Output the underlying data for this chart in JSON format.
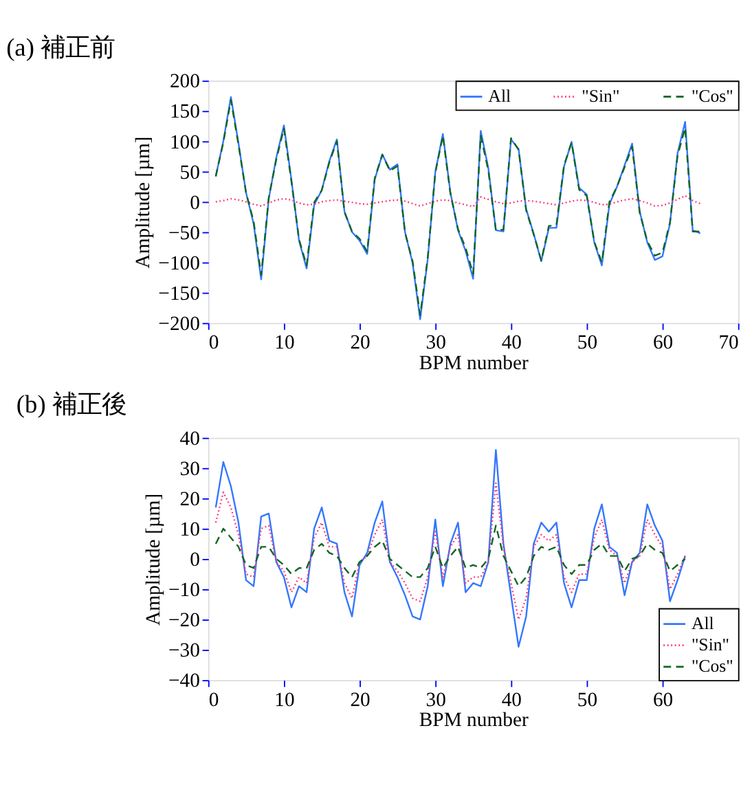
{
  "chart_data": [
    {
      "type": "line",
      "title": "(a)  補正前",
      "xlabel": "BPM number",
      "ylabel": "Amplitude [µm]",
      "xlim": [
        0,
        70
      ],
      "xticks": [
        0,
        10,
        20,
        30,
        40,
        50,
        60,
        70
      ],
      "ylim": [
        -200,
        200
      ],
      "yticks": [
        -200,
        -150,
        -100,
        -50,
        0,
        50,
        100,
        150,
        200
      ],
      "grid": false,
      "legend": "top",
      "marker": "none",
      "x": [
        1,
        2,
        3,
        4,
        5,
        6,
        7,
        8,
        9,
        10,
        11,
        12,
        13,
        14,
        15,
        16,
        17,
        18,
        19,
        20,
        21,
        22,
        23,
        24,
        25,
        26,
        27,
        28,
        29,
        30,
        31,
        32,
        33,
        34,
        35,
        36,
        37,
        38,
        39,
        40,
        41,
        42,
        43,
        44,
        45,
        46,
        47,
        48,
        49,
        50,
        51,
        52,
        53,
        54,
        55,
        56,
        57,
        58,
        59,
        60,
        61,
        62,
        63,
        64,
        65
      ],
      "series": [
        {
          "name": "All",
          "color": "#3377ff",
          "line_style": "solid",
          "values": [
            42,
            100,
            173,
            97,
            15,
            -36,
            -128,
            5,
            73,
            126,
            36,
            -64,
            -110,
            -5,
            19,
            67,
            103,
            -16,
            -50,
            -64,
            -86,
            37,
            78,
            53,
            62,
            -50,
            -101,
            -194,
            -95,
            49,
            112,
            15,
            -47,
            -81,
            -127,
            117,
            56,
            -47,
            -49,
            103,
            87,
            -12,
            -53,
            -98,
            -43,
            -43,
            58,
            99,
            23,
            12,
            -67,
            -105,
            -4,
            25,
            60,
            96,
            -16,
            -67,
            -96,
            -90,
            -36,
            80,
            132,
            -47,
            -52
          ]
        },
        {
          "name": "\"Sin\"",
          "color": "#ff3377",
          "line_style": "dotted",
          "values": [
            0,
            2,
            5,
            3,
            0,
            -4,
            -7,
            -2,
            3,
            5,
            3,
            -2,
            -5,
            -4,
            0,
            2,
            3,
            1,
            -1,
            -3,
            -4,
            -2,
            0,
            2,
            3,
            1,
            -3,
            -7,
            -3,
            1,
            3,
            2,
            -2,
            -5,
            -8,
            8,
            4,
            0,
            -3,
            -2,
            1,
            2,
            1,
            -1,
            -3,
            -5,
            -2,
            1,
            3,
            2,
            -1,
            -5,
            -4,
            0,
            3,
            5,
            2,
            -2,
            -7,
            -6,
            -2,
            4,
            10,
            2,
            -3
          ]
        },
        {
          "name": "\"Cos\"",
          "color": "#116622",
          "line_style": "dashed",
          "values": [
            42,
            98,
            168,
            94,
            15,
            -32,
            -121,
            7,
            70,
            121,
            33,
            -62,
            -105,
            -1,
            19,
            65,
            100,
            -17,
            -49,
            -61,
            -82,
            39,
            78,
            51,
            59,
            -51,
            -98,
            -187,
            -92,
            48,
            109,
            13,
            -45,
            -76,
            -119,
            109,
            52,
            -47,
            -46,
            105,
            86,
            -14,
            -54,
            -97,
            -40,
            -38,
            60,
            98,
            20,
            10,
            -66,
            -100,
            0,
            25,
            57,
            91,
            -18,
            -65,
            -89,
            -84,
            -34,
            76,
            122,
            -49,
            -49
          ]
        }
      ]
    },
    {
      "type": "line",
      "title": "(b)  補正後",
      "xlabel": "BPM number",
      "ylabel": "Amplitude [µm]",
      "xlim": [
        0,
        70
      ],
      "xticks": [
        0,
        10,
        20,
        30,
        40,
        50,
        60
      ],
      "ylim": [
        -40,
        40
      ],
      "yticks": [
        -40,
        -30,
        -20,
        -10,
        0,
        10,
        20,
        30,
        40
      ],
      "grid": false,
      "legend": "bottom right",
      "marker": "none",
      "x": [
        1,
        2,
        3,
        4,
        5,
        6,
        7,
        8,
        9,
        10,
        11,
        12,
        13,
        14,
        15,
        16,
        17,
        18,
        19,
        20,
        21,
        22,
        23,
        24,
        25,
        26,
        27,
        28,
        29,
        30,
        31,
        32,
        33,
        34,
        35,
        36,
        37,
        38,
        39,
        40,
        41,
        42,
        43,
        44,
        45,
        46,
        47,
        48,
        49,
        50,
        51,
        52,
        53,
        54,
        55,
        56,
        57,
        58,
        59,
        60,
        61,
        62,
        63
      ],
      "series": [
        {
          "name": "All",
          "color": "#3377ff",
          "line_style": "solid",
          "values": [
            17,
            32,
            24,
            12,
            -7,
            -9,
            14,
            15,
            -1,
            -6,
            -16,
            -9,
            -11,
            10,
            17,
            6,
            5,
            -11,
            -19,
            -2,
            2,
            12,
            19,
            -1,
            -6,
            -12,
            -19,
            -20,
            -9,
            13,
            -9,
            5,
            12,
            -11,
            -8,
            -9,
            -1,
            36,
            5,
            -12,
            -29,
            -19,
            5,
            12,
            9,
            12,
            -8,
            -16,
            -7,
            -7,
            10,
            18,
            4,
            2,
            -12,
            -1,
            2,
            18,
            11,
            6,
            -14,
            -7,
            1
          ]
        },
        {
          "name": "\"Sin\"",
          "color": "#ff3377",
          "line_style": "dotted",
          "values": [
            12,
            22,
            17,
            8,
            -5,
            -6,
            10,
            11,
            -1,
            -4,
            -11,
            -6,
            -8,
            7,
            12,
            4,
            4,
            -8,
            -13,
            -1,
            1,
            8,
            13,
            -1,
            -4,
            -8,
            -13,
            -14,
            -6,
            9,
            -6,
            4,
            8,
            -8,
            -6,
            -6,
            -1,
            25,
            4,
            -8,
            -20,
            -13,
            4,
            8,
            6,
            8,
            -6,
            -11,
            -5,
            -5,
            7,
            13,
            3,
            1,
            -8,
            -1,
            1,
            13,
            8,
            4,
            -10,
            -5,
            1
          ]
        },
        {
          "name": "\"Cos\"",
          "color": "#116622",
          "line_style": "dashed",
          "values": [
            5,
            10,
            7,
            4,
            -2,
            -3,
            4,
            4,
            0,
            -2,
            -5,
            -3,
            -3,
            3,
            5,
            2,
            1,
            -3,
            -6,
            -1,
            1,
            4,
            6,
            0,
            -2,
            -4,
            -6,
            -6,
            -3,
            4,
            -3,
            1,
            4,
            -3,
            -2,
            -3,
            0,
            11,
            1,
            -4,
            -9,
            -6,
            1,
            4,
            3,
            4,
            -2,
            -5,
            -2,
            -2,
            3,
            5,
            1,
            1,
            -4,
            0,
            1,
            5,
            3,
            2,
            -4,
            -2,
            0
          ]
        }
      ]
    }
  ]
}
